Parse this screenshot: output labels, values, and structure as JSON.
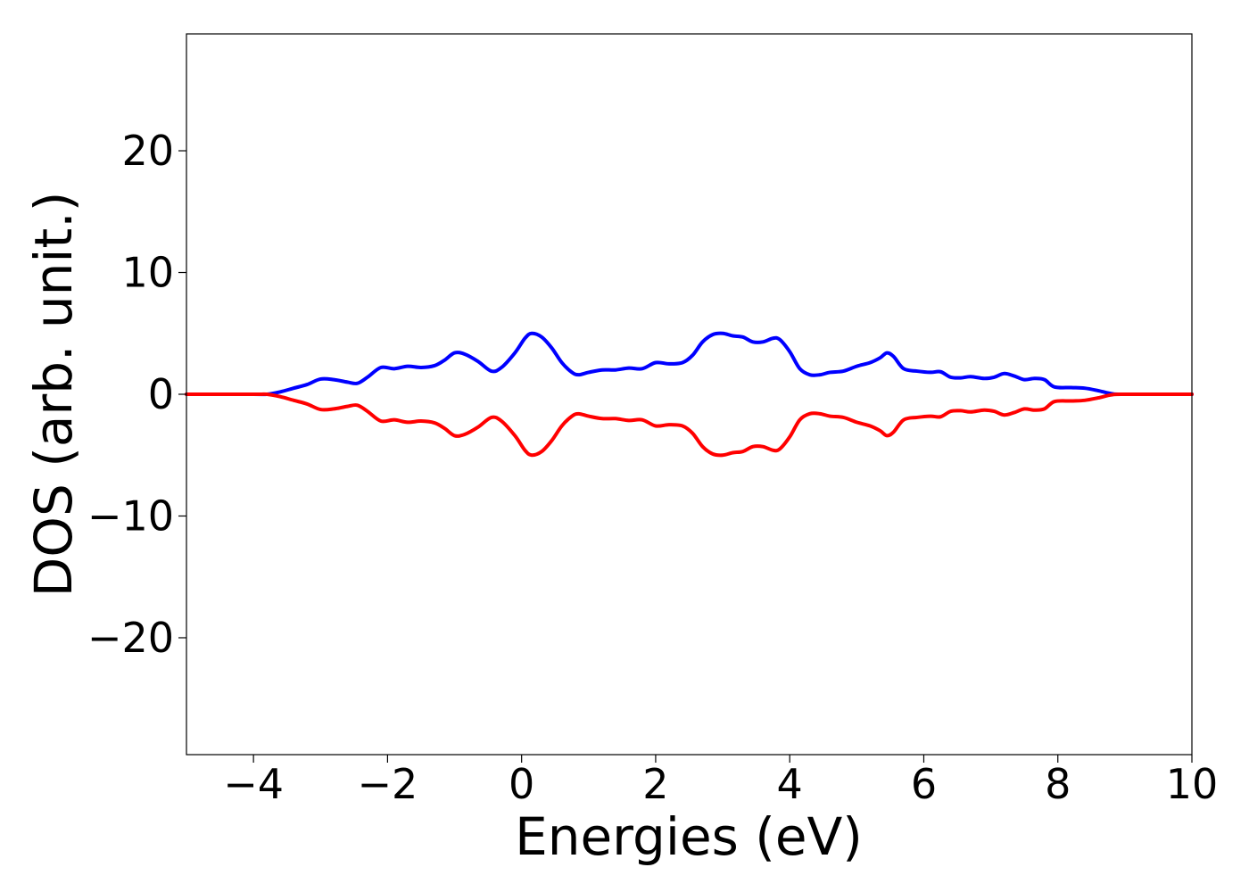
{
  "chart_data": {
    "type": "line",
    "title": "",
    "xlabel": "Energies (eV)",
    "ylabel": "DOS (arb. unit.)",
    "xlim": [
      -5,
      10
    ],
    "ylim": [
      -29.6,
      29.6
    ],
    "xticks": [
      -4,
      -2,
      0,
      2,
      4,
      6,
      8,
      10
    ],
    "xtick_labels": [
      "−4",
      "−2",
      "0",
      "2",
      "4",
      "6",
      "8",
      "10"
    ],
    "yticks": [
      -20,
      -10,
      0,
      10,
      20
    ],
    "ytick_labels": [
      "−20",
      "−10",
      "0",
      "10",
      "20"
    ],
    "grid": false,
    "legend": "none",
    "series": [
      {
        "color": "#0000ff",
        "x": [
          -5,
          -4,
          -3.8,
          -3.6,
          -3.4,
          -3.2,
          -3.0,
          -2.8,
          -2.6,
          -2.45,
          -2.3,
          -2.1,
          -1.9,
          -1.7,
          -1.5,
          -1.3,
          -1.15,
          -1.0,
          -0.85,
          -0.65,
          -0.45,
          -0.3,
          -0.1,
          0.05,
          0.15,
          0.3,
          0.45,
          0.6,
          0.75,
          0.85,
          1.0,
          1.2,
          1.4,
          1.6,
          1.8,
          2.0,
          2.2,
          2.4,
          2.55,
          2.7,
          2.85,
          3.0,
          3.15,
          3.3,
          3.45,
          3.6,
          3.75,
          3.85,
          4.0,
          4.15,
          4.3,
          4.45,
          4.6,
          4.8,
          5.0,
          5.2,
          5.35,
          5.45,
          5.55,
          5.7,
          5.9,
          6.1,
          6.25,
          6.4,
          6.55,
          6.7,
          6.9,
          7.05,
          7.2,
          7.35,
          7.5,
          7.65,
          7.8,
          7.95,
          8.2,
          8.4,
          8.6,
          8.8,
          9.0,
          10.0
        ],
        "y": [
          0,
          0,
          0,
          0.2,
          0.5,
          0.8,
          1.25,
          1.2,
          1.0,
          0.9,
          1.4,
          2.2,
          2.1,
          2.3,
          2.2,
          2.35,
          2.8,
          3.4,
          3.3,
          2.7,
          1.9,
          2.2,
          3.4,
          4.6,
          5.0,
          4.7,
          3.8,
          2.6,
          1.8,
          1.6,
          1.8,
          2.0,
          2.0,
          2.15,
          2.1,
          2.6,
          2.5,
          2.6,
          3.2,
          4.3,
          4.9,
          5.0,
          4.8,
          4.7,
          4.3,
          4.3,
          4.6,
          4.5,
          3.5,
          2.1,
          1.6,
          1.6,
          1.8,
          1.9,
          2.3,
          2.6,
          3.0,
          3.4,
          3.1,
          2.1,
          1.9,
          1.8,
          1.85,
          1.4,
          1.35,
          1.45,
          1.3,
          1.4,
          1.7,
          1.5,
          1.2,
          1.3,
          1.2,
          0.6,
          0.55,
          0.5,
          0.3,
          0.05,
          0,
          0
        ]
      },
      {
        "color": "#ff0000",
        "x": [
          -5,
          -4,
          -3.8,
          -3.6,
          -3.4,
          -3.2,
          -3.0,
          -2.8,
          -2.6,
          -2.45,
          -2.3,
          -2.1,
          -1.9,
          -1.7,
          -1.5,
          -1.3,
          -1.15,
          -1.0,
          -0.85,
          -0.65,
          -0.45,
          -0.3,
          -0.1,
          0.05,
          0.15,
          0.3,
          0.45,
          0.6,
          0.75,
          0.85,
          1.0,
          1.2,
          1.4,
          1.6,
          1.8,
          2.0,
          2.2,
          2.4,
          2.55,
          2.7,
          2.85,
          3.0,
          3.15,
          3.3,
          3.45,
          3.6,
          3.75,
          3.85,
          4.0,
          4.15,
          4.3,
          4.45,
          4.6,
          4.8,
          5.0,
          5.2,
          5.35,
          5.45,
          5.55,
          5.7,
          5.9,
          6.1,
          6.25,
          6.4,
          6.55,
          6.7,
          6.9,
          7.05,
          7.2,
          7.35,
          7.5,
          7.65,
          7.8,
          7.95,
          8.2,
          8.4,
          8.6,
          8.8,
          9.0,
          10.0
        ],
        "y": [
          0,
          0,
          0,
          -0.2,
          -0.5,
          -0.8,
          -1.25,
          -1.2,
          -1.0,
          -0.9,
          -1.4,
          -2.2,
          -2.1,
          -2.3,
          -2.2,
          -2.35,
          -2.8,
          -3.4,
          -3.3,
          -2.7,
          -1.9,
          -2.2,
          -3.4,
          -4.6,
          -5.0,
          -4.7,
          -3.8,
          -2.6,
          -1.8,
          -1.6,
          -1.8,
          -2.0,
          -2.0,
          -2.15,
          -2.1,
          -2.6,
          -2.5,
          -2.6,
          -3.2,
          -4.3,
          -4.9,
          -5.0,
          -4.8,
          -4.7,
          -4.3,
          -4.3,
          -4.6,
          -4.5,
          -3.5,
          -2.1,
          -1.6,
          -1.6,
          -1.8,
          -1.9,
          -2.3,
          -2.6,
          -3.0,
          -3.4,
          -3.1,
          -2.1,
          -1.9,
          -1.8,
          -1.85,
          -1.4,
          -1.35,
          -1.45,
          -1.3,
          -1.4,
          -1.7,
          -1.5,
          -1.2,
          -1.3,
          -1.2,
          -0.6,
          -0.55,
          -0.5,
          -0.3,
          -0.05,
          0,
          0
        ]
      }
    ]
  }
}
